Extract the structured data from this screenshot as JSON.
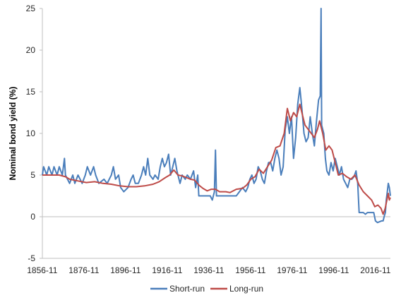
{
  "chart_data": {
    "type": "line",
    "title": "",
    "xlabel": "",
    "ylabel": "Nominal bond yield (%)",
    "ylim": [
      -5,
      25
    ],
    "yticks": [
      -5,
      0,
      5,
      10,
      15,
      20,
      25
    ],
    "xticks": [
      "1856-11",
      "1876-11",
      "1896-11",
      "1916-11",
      "1936-11",
      "1956-11",
      "1976-11",
      "1996-11",
      "2016-11"
    ],
    "xlim": [
      1856.9,
      2024.0
    ],
    "grid": false,
    "legend_position": "bottom",
    "series": [
      {
        "name": "Short-run",
        "color": "#4a7ebb",
        "points": [
          [
            1856.9,
            5.0
          ],
          [
            1857.5,
            6.0
          ],
          [
            1859.0,
            5.0
          ],
          [
            1860.0,
            6.0
          ],
          [
            1861.5,
            5.0
          ],
          [
            1862.5,
            6.0
          ],
          [
            1864.0,
            5.0
          ],
          [
            1865.0,
            6.0
          ],
          [
            1866.5,
            5.0
          ],
          [
            1867.5,
            7.0
          ],
          [
            1868.0,
            5.0
          ],
          [
            1870.0,
            4.0
          ],
          [
            1871.5,
            5.0
          ],
          [
            1872.5,
            4.0
          ],
          [
            1874.0,
            5.0
          ],
          [
            1876.0,
            4.0
          ],
          [
            1877.5,
            5.0
          ],
          [
            1878.5,
            6.0
          ],
          [
            1880.0,
            5.0
          ],
          [
            1881.5,
            6.0
          ],
          [
            1882.5,
            5.0
          ],
          [
            1884.0,
            4.0
          ],
          [
            1886.5,
            4.5
          ],
          [
            1888.0,
            4.0
          ],
          [
            1890.0,
            5.0
          ],
          [
            1891.0,
            6.0
          ],
          [
            1892.0,
            4.5
          ],
          [
            1893.5,
            5.0
          ],
          [
            1894.5,
            3.5
          ],
          [
            1896.0,
            3.0
          ],
          [
            1898.0,
            3.5
          ],
          [
            1899.5,
            4.5
          ],
          [
            1900.5,
            5.0
          ],
          [
            1901.5,
            4.0
          ],
          [
            1903.0,
            4.0
          ],
          [
            1904.5,
            5.0
          ],
          [
            1905.5,
            6.0
          ],
          [
            1906.5,
            5.0
          ],
          [
            1907.5,
            7.0
          ],
          [
            1908.5,
            5.0
          ],
          [
            1910.0,
            4.5
          ],
          [
            1911.0,
            5.0
          ],
          [
            1912.5,
            4.5
          ],
          [
            1913.5,
            6.0
          ],
          [
            1914.5,
            7.0
          ],
          [
            1915.5,
            6.0
          ],
          [
            1916.5,
            6.5
          ],
          [
            1917.5,
            7.5
          ],
          [
            1918.5,
            5.0
          ],
          [
            1919.5,
            6.0
          ],
          [
            1920.5,
            7.0
          ],
          [
            1921.5,
            5.5
          ],
          [
            1923.0,
            4.0
          ],
          [
            1924.0,
            5.0
          ],
          [
            1925.5,
            4.5
          ],
          [
            1926.5,
            5.0
          ],
          [
            1928.0,
            4.5
          ],
          [
            1929.5,
            5.5
          ],
          [
            1930.5,
            3.5
          ],
          [
            1931.5,
            5.0
          ],
          [
            1932.0,
            2.5
          ],
          [
            1934.5,
            2.5
          ],
          [
            1936.5,
            2.5
          ],
          [
            1937.5,
            2.5
          ],
          [
            1938.5,
            2.0
          ],
          [
            1939.5,
            3.0
          ],
          [
            1940.0,
            8.0
          ],
          [
            1940.5,
            2.5
          ],
          [
            1942.0,
            2.5
          ],
          [
            1946.5,
            2.5
          ],
          [
            1947.5,
            2.5
          ],
          [
            1950.0,
            2.5
          ],
          [
            1951.5,
            3.0
          ],
          [
            1953.0,
            3.5
          ],
          [
            1954.5,
            3.0
          ],
          [
            1955.5,
            3.5
          ],
          [
            1956.5,
            4.5
          ],
          [
            1957.5,
            5.0
          ],
          [
            1958.5,
            4.0
          ],
          [
            1959.5,
            4.5
          ],
          [
            1960.5,
            6.0
          ],
          [
            1961.5,
            5.5
          ],
          [
            1962.5,
            4.5
          ],
          [
            1963.5,
            4.0
          ],
          [
            1964.5,
            5.5
          ],
          [
            1965.5,
            6.5
          ],
          [
            1966.5,
            6.5
          ],
          [
            1967.5,
            5.5
          ],
          [
            1968.5,
            7.0
          ],
          [
            1969.5,
            8.0
          ],
          [
            1970.5,
            7.0
          ],
          [
            1971.5,
            5.0
          ],
          [
            1972.5,
            6.0
          ],
          [
            1973.5,
            10.5
          ],
          [
            1974.5,
            12.0
          ],
          [
            1975.5,
            10.0
          ],
          [
            1976.5,
            12.0
          ],
          [
            1977.5,
            7.0
          ],
          [
            1978.5,
            9.5
          ],
          [
            1979.5,
            13.5
          ],
          [
            1980.5,
            15.5
          ],
          [
            1981.5,
            13.0
          ],
          [
            1982.5,
            10.0
          ],
          [
            1983.5,
            9.0
          ],
          [
            1984.5,
            9.5
          ],
          [
            1985.5,
            12.0
          ],
          [
            1986.5,
            10.0
          ],
          [
            1987.5,
            8.5
          ],
          [
            1988.5,
            11.5
          ],
          [
            1989.5,
            14.0
          ],
          [
            1990.3,
            14.5
          ],
          [
            1990.7,
            25.0
          ],
          [
            1991.0,
            11.0
          ],
          [
            1992.0,
            10.0
          ],
          [
            1992.8,
            7.0
          ],
          [
            1993.5,
            5.5
          ],
          [
            1994.5,
            5.0
          ],
          [
            1995.5,
            6.5
          ],
          [
            1996.5,
            5.5
          ],
          [
            1997.5,
            7.0
          ],
          [
            1998.5,
            6.0
          ],
          [
            1999.5,
            5.0
          ],
          [
            2000.5,
            6.0
          ],
          [
            2001.5,
            4.5
          ],
          [
            2002.5,
            4.0
          ],
          [
            2003.5,
            3.5
          ],
          [
            2004.5,
            4.5
          ],
          [
            2005.5,
            4.5
          ],
          [
            2006.5,
            4.8
          ],
          [
            2007.5,
            5.5
          ],
          [
            2008.3,
            4.0
          ],
          [
            2009.0,
            0.5
          ],
          [
            2010.0,
            0.5
          ],
          [
            2011.0,
            0.5
          ],
          [
            2012.0,
            0.3
          ],
          [
            2013.0,
            0.5
          ],
          [
            2014.0,
            0.5
          ],
          [
            2015.0,
            0.5
          ],
          [
            2016.0,
            0.5
          ],
          [
            2016.8,
            -0.5
          ],
          [
            2017.8,
            -0.7
          ],
          [
            2018.8,
            -0.6
          ],
          [
            2019.8,
            -0.5
          ],
          [
            2020.5,
            -0.5
          ],
          [
            2021.0,
            0.0
          ],
          [
            2021.6,
            0.5
          ],
          [
            2022.0,
            2.0
          ],
          [
            2022.5,
            3.0
          ],
          [
            2023.0,
            4.0
          ],
          [
            2023.5,
            3.5
          ],
          [
            2024.0,
            2.5
          ]
        ]
      },
      {
        "name": "Long-run",
        "color": "#be4b48",
        "points": [
          [
            1856.9,
            5.0
          ],
          [
            1859.0,
            5.0
          ],
          [
            1862.0,
            5.0
          ],
          [
            1865.0,
            5.0
          ],
          [
            1868.0,
            4.8
          ],
          [
            1870.0,
            4.5
          ],
          [
            1874.0,
            4.3
          ],
          [
            1878.0,
            4.1
          ],
          [
            1882.0,
            4.2
          ],
          [
            1886.0,
            4.0
          ],
          [
            1890.0,
            3.9
          ],
          [
            1894.0,
            3.7
          ],
          [
            1898.0,
            3.6
          ],
          [
            1902.0,
            3.6
          ],
          [
            1906.0,
            3.7
          ],
          [
            1910.0,
            3.9
          ],
          [
            1913.0,
            4.2
          ],
          [
            1916.0,
            4.7
          ],
          [
            1918.0,
            5.0
          ],
          [
            1920.0,
            5.6
          ],
          [
            1922.0,
            5.0
          ],
          [
            1924.0,
            4.9
          ],
          [
            1926.0,
            4.7
          ],
          [
            1928.0,
            4.5
          ],
          [
            1930.0,
            4.4
          ],
          [
            1932.0,
            3.8
          ],
          [
            1934.0,
            3.4
          ],
          [
            1936.0,
            3.1
          ],
          [
            1938.0,
            3.3
          ],
          [
            1940.0,
            3.3
          ],
          [
            1942.0,
            3.0
          ],
          [
            1945.0,
            3.0
          ],
          [
            1947.0,
            2.9
          ],
          [
            1950.0,
            3.3
          ],
          [
            1953.0,
            3.4
          ],
          [
            1955.0,
            3.8
          ],
          [
            1957.0,
            4.5
          ],
          [
            1959.0,
            4.8
          ],
          [
            1961.0,
            5.7
          ],
          [
            1963.0,
            5.2
          ],
          [
            1965.0,
            6.0
          ],
          [
            1967.0,
            6.8
          ],
          [
            1969.0,
            8.3
          ],
          [
            1971.0,
            8.5
          ],
          [
            1973.0,
            10.0
          ],
          [
            1974.5,
            13.0
          ],
          [
            1976.0,
            11.5
          ],
          [
            1977.5,
            12.5
          ],
          [
            1979.0,
            12.0
          ],
          [
            1980.5,
            13.5
          ],
          [
            1981.5,
            12.5
          ],
          [
            1983.0,
            11.0
          ],
          [
            1984.5,
            10.5
          ],
          [
            1986.0,
            10.0
          ],
          [
            1987.5,
            9.5
          ],
          [
            1989.0,
            10.5
          ],
          [
            1990.0,
            11.5
          ],
          [
            1991.5,
            10.0
          ],
          [
            1993.0,
            8.0
          ],
          [
            1994.5,
            8.5
          ],
          [
            1996.0,
            8.0
          ],
          [
            1997.5,
            6.5
          ],
          [
            1999.0,
            5.0
          ],
          [
            2001.0,
            5.2
          ],
          [
            2003.0,
            4.8
          ],
          [
            2005.0,
            4.5
          ],
          [
            2007.0,
            5.0
          ],
          [
            2009.0,
            3.8
          ],
          [
            2011.0,
            3.0
          ],
          [
            2013.0,
            2.5
          ],
          [
            2015.0,
            2.0
          ],
          [
            2016.5,
            1.2
          ],
          [
            2018.0,
            1.4
          ],
          [
            2019.5,
            1.0
          ],
          [
            2020.5,
            0.3
          ],
          [
            2021.5,
            1.0
          ],
          [
            2022.3,
            2.0
          ],
          [
            2023.0,
            2.8
          ],
          [
            2023.5,
            2.0
          ],
          [
            2024.0,
            2.3
          ]
        ]
      }
    ]
  }
}
